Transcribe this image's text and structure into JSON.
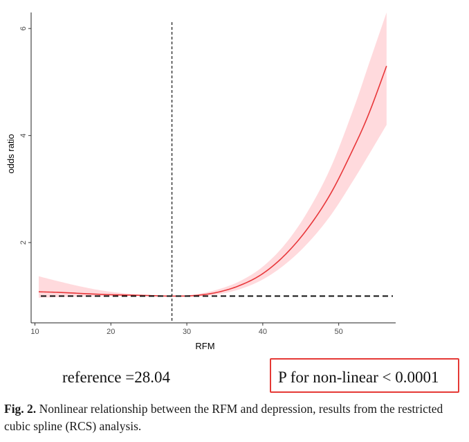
{
  "chart_data": {
    "type": "line",
    "title": "",
    "xlabel": "RFM",
    "ylabel": "odds ratio",
    "xlim": [
      9.5,
      57.5
    ],
    "ylim": [
      0.5,
      6.3
    ],
    "xticks": [
      10,
      20,
      30,
      40,
      50
    ],
    "yticks": [
      2,
      4,
      6
    ],
    "reference_x": 28.04,
    "reference_y": 1,
    "series": [
      {
        "name": "odds ratio",
        "color": "#e8373a",
        "ci_color": "#ffd6d9",
        "x": [
          10.5,
          13,
          16,
          19,
          22,
          25,
          28.04,
          31,
          34,
          37,
          40,
          43,
          46,
          49,
          52,
          54,
          56.3
        ],
        "y": [
          1.08,
          1.07,
          1.05,
          1.03,
          1.02,
          1.01,
          1.0,
          1.01,
          1.07,
          1.2,
          1.42,
          1.78,
          2.28,
          2.93,
          3.78,
          4.42,
          5.3
        ],
        "lower": [
          0.97,
          0.98,
          0.99,
          0.995,
          1.0,
          1.0,
          1.0,
          0.99,
          1.03,
          1.13,
          1.31,
          1.6,
          2.0,
          2.52,
          3.18,
          3.65,
          4.2
        ],
        "upper": [
          1.37,
          1.28,
          1.18,
          1.1,
          1.05,
          1.02,
          1.0,
          1.03,
          1.12,
          1.28,
          1.55,
          1.98,
          2.6,
          3.42,
          4.52,
          5.35,
          6.3
        ]
      }
    ]
  },
  "reference_text": "reference =28.04",
  "pvalue_text": "P for non-linear < 0.0001",
  "caption": {
    "label": "Fig. 2.",
    "text": " Nonlinear relationship between the RFM and depression, results from the restricted cubic spline (RCS) analysis."
  }
}
